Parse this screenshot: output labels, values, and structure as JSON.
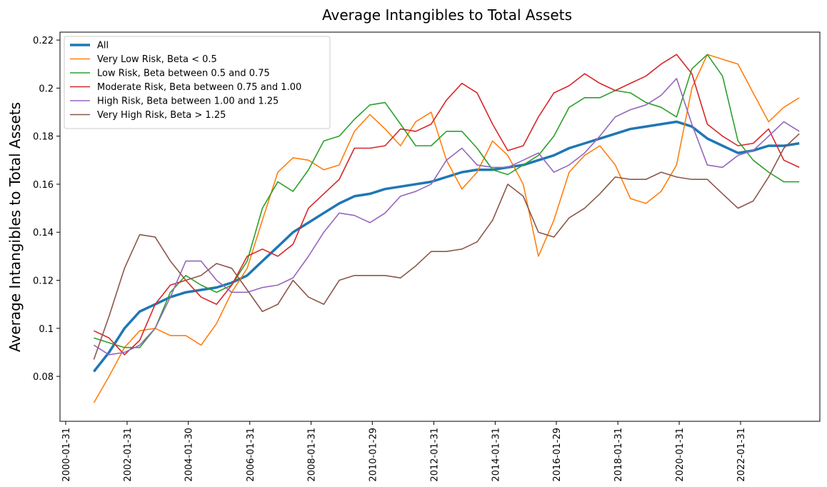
{
  "chart_data": {
    "type": "line",
    "title": "Average Intangibles to Total Assets",
    "y_label": "Average Intangibles to Total Assets",
    "x": [
      "2000-12-31",
      "2001-06-30",
      "2001-12-31",
      "2002-06-30",
      "2002-12-31",
      "2003-06-30",
      "2003-12-31",
      "2004-06-30",
      "2004-12-31",
      "2005-06-30",
      "2005-12-31",
      "2006-06-30",
      "2006-12-31",
      "2007-06-30",
      "2007-12-31",
      "2008-06-30",
      "2008-12-31",
      "2009-06-30",
      "2009-12-31",
      "2010-06-30",
      "2010-12-31",
      "2011-06-30",
      "2011-12-31",
      "2012-06-30",
      "2012-12-31",
      "2013-06-30",
      "2013-12-31",
      "2014-06-30",
      "2014-12-31",
      "2015-06-30",
      "2015-12-31",
      "2016-06-30",
      "2016-12-31",
      "2017-06-30",
      "2017-12-31",
      "2018-06-30",
      "2018-12-31",
      "2019-06-30",
      "2019-12-31",
      "2020-06-30",
      "2020-12-31",
      "2021-06-30",
      "2021-12-31",
      "2022-06-30",
      "2022-12-31",
      "2023-06-30",
      "2023-12-31"
    ],
    "series": [
      {
        "name": "All",
        "color": "#1f77b4",
        "values": [
          0.082,
          0.09,
          0.1,
          0.107,
          0.11,
          0.113,
          0.115,
          0.116,
          0.117,
          0.119,
          0.122,
          0.128,
          0.134,
          0.14,
          0.144,
          0.148,
          0.152,
          0.155,
          0.156,
          0.158,
          0.159,
          0.16,
          0.161,
          0.163,
          0.165,
          0.166,
          0.166,
          0.167,
          0.168,
          0.17,
          0.172,
          0.175,
          0.177,
          0.179,
          0.181,
          0.183,
          0.184,
          0.185,
          0.186,
          0.184,
          0.179,
          0.176,
          0.173,
          0.174,
          0.176,
          0.176,
          0.177
        ]
      },
      {
        "name": "Very Low Risk, Beta < 0.5",
        "color": "#ff7f0e",
        "values": [
          0.069,
          0.08,
          0.092,
          0.099,
          0.1,
          0.097,
          0.097,
          0.093,
          0.102,
          0.115,
          0.125,
          0.145,
          0.165,
          0.171,
          0.17,
          0.166,
          0.168,
          0.182,
          0.189,
          0.183,
          0.176,
          0.186,
          0.19,
          0.17,
          0.158,
          0.165,
          0.178,
          0.172,
          0.16,
          0.13,
          0.145,
          0.165,
          0.172,
          0.176,
          0.168,
          0.154,
          0.152,
          0.157,
          0.168,
          0.2,
          0.214,
          0.212,
          0.21,
          0.198,
          0.186,
          0.192,
          0.196
        ]
      },
      {
        "name": "Low Risk, Beta between 0.5 and 0.75",
        "color": "#2ca02c",
        "values": [
          0.096,
          0.094,
          0.092,
          0.092,
          0.1,
          0.115,
          0.122,
          0.118,
          0.115,
          0.118,
          0.128,
          0.15,
          0.161,
          0.157,
          0.166,
          0.178,
          0.18,
          0.187,
          0.193,
          0.194,
          0.185,
          0.176,
          0.176,
          0.182,
          0.182,
          0.175,
          0.166,
          0.164,
          0.168,
          0.172,
          0.18,
          0.192,
          0.196,
          0.196,
          0.199,
          0.198,
          0.194,
          0.192,
          0.188,
          0.208,
          0.214,
          0.205,
          0.178,
          0.17,
          0.165,
          0.161,
          0.161
        ]
      },
      {
        "name": "Moderate Risk, Beta between 0.75 and 1.00",
        "color": "#d62728",
        "values": [
          0.099,
          0.096,
          0.089,
          0.095,
          0.11,
          0.118,
          0.12,
          0.113,
          0.11,
          0.118,
          0.13,
          0.133,
          0.13,
          0.135,
          0.15,
          0.156,
          0.162,
          0.175,
          0.175,
          0.176,
          0.183,
          0.182,
          0.185,
          0.195,
          0.202,
          0.198,
          0.185,
          0.174,
          0.176,
          0.188,
          0.198,
          0.201,
          0.206,
          0.202,
          0.199,
          0.202,
          0.205,
          0.21,
          0.214,
          0.206,
          0.185,
          0.18,
          0.176,
          0.177,
          0.183,
          0.17,
          0.167
        ]
      },
      {
        "name": "High Risk, Beta between 1.00 and 1.25",
        "color": "#9467bd",
        "values": [
          0.093,
          0.089,
          0.09,
          0.093,
          0.1,
          0.113,
          0.128,
          0.128,
          0.12,
          0.115,
          0.115,
          0.117,
          0.118,
          0.121,
          0.13,
          0.14,
          0.148,
          0.147,
          0.144,
          0.148,
          0.155,
          0.157,
          0.16,
          0.17,
          0.175,
          0.168,
          0.167,
          0.167,
          0.17,
          0.173,
          0.165,
          0.168,
          0.173,
          0.18,
          0.188,
          0.191,
          0.193,
          0.197,
          0.204,
          0.185,
          0.168,
          0.167,
          0.172,
          0.174,
          0.18,
          0.186,
          0.182
        ]
      },
      {
        "name": "Very High Risk, Beta > 1.25",
        "color": "#8c564b",
        "values": [
          0.087,
          0.105,
          0.125,
          0.139,
          0.138,
          0.128,
          0.12,
          0.122,
          0.127,
          0.125,
          0.116,
          0.107,
          0.11,
          0.12,
          0.113,
          0.11,
          0.12,
          0.122,
          0.122,
          0.122,
          0.121,
          0.126,
          0.132,
          0.132,
          0.133,
          0.136,
          0.145,
          0.16,
          0.155,
          0.14,
          0.138,
          0.146,
          0.15,
          0.156,
          0.163,
          0.162,
          0.162,
          0.165,
          0.163,
          0.162,
          0.162,
          0.156,
          0.15,
          0.153,
          0.163,
          0.175,
          0.181
        ]
      }
    ],
    "xlim": [
      "1999-11-24",
      "2024-09-01"
    ],
    "xticks": [
      "2000-01-31",
      "2002-01-31",
      "2004-01-30",
      "2006-01-31",
      "2008-01-31",
      "2010-01-29",
      "2012-01-31",
      "2014-01-31",
      "2016-01-29",
      "2018-01-31",
      "2020-01-31",
      "2022-01-31"
    ],
    "ylim": [
      0.0613,
      0.2233
    ],
    "yticks": [
      0.08,
      0.1,
      0.12,
      0.14,
      0.16,
      0.18,
      0.2,
      0.22
    ],
    "legend": "upper left",
    "grid": false
  }
}
